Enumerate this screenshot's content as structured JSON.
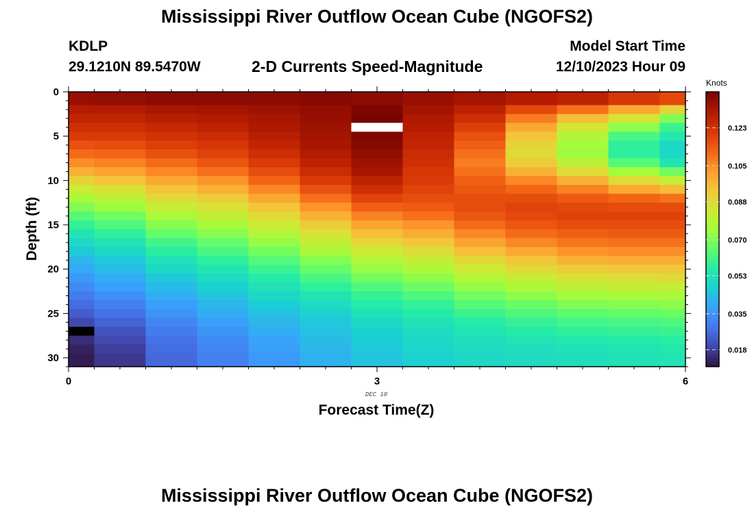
{
  "header": {
    "title": "Mississippi River Outflow Ocean Cube (NGOFS2)",
    "station_name": "KDLP",
    "station_coords": "29.1210N  89.5470W",
    "subtitle": "2-D Currents Speed-Magnitude",
    "model_start_label": "Model Start Time",
    "model_start_value": "12/10/2023 Hour 09"
  },
  "footer": {
    "title": "Mississippi River Outflow Ocean Cube (NGOFS2)"
  },
  "chart_data": {
    "type": "heatmap",
    "title": "2-D Currents Speed-Magnitude",
    "xlabel": "Forecast Time(Z)",
    "ylabel": "Depth (ft)",
    "x_minor_label": "DEC 10",
    "xlim": [
      0,
      6
    ],
    "ylim": [
      0,
      31
    ],
    "y_inverted": true,
    "x_ticks": [
      0,
      3,
      6
    ],
    "x_tick_labels": [
      "0",
      "3",
      "6"
    ],
    "y_ticks": [
      0,
      5,
      10,
      15,
      20,
      25,
      30
    ],
    "y_tick_labels": [
      "0",
      "5",
      "10",
      "15",
      "20",
      "25",
      "30"
    ],
    "colorbar": {
      "label": "Knots",
      "min": 0.01,
      "max": 0.14,
      "ticks": [
        0.018,
        0.035,
        0.053,
        0.07,
        0.088,
        0.105,
        0.123
      ],
      "tick_labels": [
        "0.018",
        "0.035",
        "0.053",
        "0.070",
        "0.088",
        "0.105",
        "0.123"
      ]
    },
    "time_edges": [
      0,
      0.25,
      0.75,
      1.25,
      1.75,
      2.25,
      2.75,
      3.25,
      3.75,
      4.25,
      4.75,
      5.25,
      5.75,
      6
    ],
    "depth_edges": [
      0,
      1.5,
      2.5,
      3.5,
      4.5,
      5.5,
      6.5,
      7.5,
      8.5,
      9.5,
      10.5,
      11.5,
      12.5,
      13.5,
      14.5,
      15.5,
      16.5,
      17.5,
      18.5,
      19.5,
      20.5,
      21.5,
      22.5,
      23.5,
      24.5,
      25.5,
      26.5,
      27.5,
      28.5,
      29.5,
      31
    ],
    "values": [
      [
        0.135,
        0.136,
        0.137,
        0.137,
        0.137,
        0.138,
        0.137,
        0.135,
        0.133,
        0.13,
        0.128,
        0.122,
        0.118
      ],
      [
        0.13,
        0.13,
        0.132,
        0.133,
        0.134,
        0.136,
        0.139,
        0.133,
        0.128,
        0.118,
        0.11,
        0.1,
        0.09
      ],
      [
        0.127,
        0.127,
        0.129,
        0.13,
        0.132,
        0.135,
        0.14,
        0.131,
        0.124,
        0.108,
        0.095,
        0.085,
        0.07
      ],
      [
        0.124,
        0.124,
        0.126,
        0.128,
        0.131,
        0.134,
        null,
        0.13,
        0.12,
        0.1,
        0.085,
        0.072,
        0.06
      ],
      [
        0.121,
        0.121,
        0.123,
        0.125,
        0.129,
        0.133,
        0.139,
        0.128,
        0.116,
        0.094,
        0.078,
        0.062,
        0.055
      ],
      [
        0.116,
        0.117,
        0.12,
        0.122,
        0.127,
        0.132,
        0.138,
        0.127,
        0.113,
        0.09,
        0.075,
        0.058,
        0.05
      ],
      [
        0.111,
        0.112,
        0.116,
        0.119,
        0.124,
        0.13,
        0.136,
        0.125,
        0.11,
        0.088,
        0.074,
        0.058,
        0.05
      ],
      [
        0.105,
        0.107,
        0.111,
        0.115,
        0.121,
        0.128,
        0.134,
        0.124,
        0.108,
        0.092,
        0.08,
        0.064,
        0.054
      ],
      [
        0.098,
        0.101,
        0.106,
        0.11,
        0.117,
        0.125,
        0.132,
        0.122,
        0.11,
        0.098,
        0.088,
        0.075,
        0.068
      ],
      [
        0.09,
        0.094,
        0.1,
        0.104,
        0.112,
        0.121,
        0.128,
        0.121,
        0.113,
        0.106,
        0.098,
        0.088,
        0.082
      ],
      [
        0.083,
        0.086,
        0.094,
        0.098,
        0.106,
        0.116,
        0.124,
        0.119,
        0.115,
        0.112,
        0.107,
        0.1,
        0.096
      ],
      [
        0.076,
        0.08,
        0.088,
        0.092,
        0.1,
        0.11,
        0.119,
        0.117,
        0.117,
        0.117,
        0.114,
        0.112,
        0.11
      ],
      [
        0.07,
        0.074,
        0.082,
        0.086,
        0.094,
        0.104,
        0.113,
        0.114,
        0.117,
        0.119,
        0.118,
        0.117,
        0.117
      ],
      [
        0.064,
        0.068,
        0.076,
        0.081,
        0.088,
        0.098,
        0.107,
        0.11,
        0.115,
        0.118,
        0.119,
        0.119,
        0.119
      ],
      [
        0.059,
        0.063,
        0.071,
        0.076,
        0.083,
        0.092,
        0.101,
        0.104,
        0.111,
        0.115,
        0.117,
        0.117,
        0.117
      ],
      [
        0.054,
        0.058,
        0.066,
        0.071,
        0.078,
        0.086,
        0.095,
        0.099,
        0.106,
        0.111,
        0.113,
        0.114,
        0.114
      ],
      [
        0.05,
        0.054,
        0.061,
        0.066,
        0.073,
        0.081,
        0.089,
        0.093,
        0.101,
        0.106,
        0.109,
        0.11,
        0.11
      ],
      [
        0.046,
        0.05,
        0.057,
        0.062,
        0.068,
        0.076,
        0.083,
        0.087,
        0.095,
        0.1,
        0.104,
        0.105,
        0.105
      ],
      [
        0.042,
        0.046,
        0.053,
        0.058,
        0.064,
        0.071,
        0.078,
        0.082,
        0.089,
        0.094,
        0.098,
        0.099,
        0.099
      ],
      [
        0.039,
        0.043,
        0.05,
        0.054,
        0.06,
        0.066,
        0.073,
        0.077,
        0.083,
        0.088,
        0.092,
        0.093,
        0.093
      ],
      [
        0.036,
        0.04,
        0.046,
        0.051,
        0.056,
        0.062,
        0.068,
        0.072,
        0.078,
        0.082,
        0.086,
        0.087,
        0.088
      ],
      [
        0.033,
        0.037,
        0.043,
        0.048,
        0.053,
        0.058,
        0.063,
        0.067,
        0.073,
        0.077,
        0.08,
        0.082,
        0.082
      ],
      [
        0.03,
        0.034,
        0.04,
        0.045,
        0.05,
        0.054,
        0.059,
        0.063,
        0.068,
        0.072,
        0.075,
        0.076,
        0.076
      ],
      [
        0.027,
        0.031,
        0.037,
        0.042,
        0.047,
        0.051,
        0.056,
        0.059,
        0.064,
        0.067,
        0.07,
        0.071,
        0.072
      ],
      [
        0.024,
        0.028,
        0.035,
        0.04,
        0.044,
        0.048,
        0.053,
        0.056,
        0.06,
        0.063,
        0.065,
        0.066,
        0.067
      ],
      [
        0.02,
        0.025,
        0.032,
        0.037,
        0.042,
        0.046,
        0.05,
        0.053,
        0.056,
        0.059,
        0.061,
        0.062,
        0.063
      ],
      [
        0.006,
        0.022,
        0.03,
        0.035,
        0.04,
        0.044,
        0.048,
        0.051,
        0.054,
        0.056,
        0.058,
        0.059,
        0.06
      ],
      [
        0.015,
        0.02,
        0.028,
        0.033,
        0.038,
        0.043,
        0.047,
        0.05,
        0.052,
        0.054,
        0.055,
        0.056,
        0.057
      ],
      [
        0.013,
        0.018,
        0.027,
        0.032,
        0.037,
        0.042,
        0.046,
        0.049,
        0.051,
        0.052,
        0.053,
        0.054,
        0.055
      ],
      [
        0.012,
        0.017,
        0.026,
        0.031,
        0.036,
        0.041,
        0.045,
        0.048,
        0.05,
        0.051,
        0.052,
        0.053,
        0.054
      ]
    ],
    "colormap": [
      "#30123b",
      "#4145ab",
      "#4675ed",
      "#39a2fc",
      "#1bcfd4",
      "#24eca6",
      "#61fc6c",
      "#a4fc3b",
      "#d1e834",
      "#f3c63a",
      "#fe9b2d",
      "#f36315",
      "#d93806",
      "#b11901",
      "#7a0402"
    ]
  }
}
